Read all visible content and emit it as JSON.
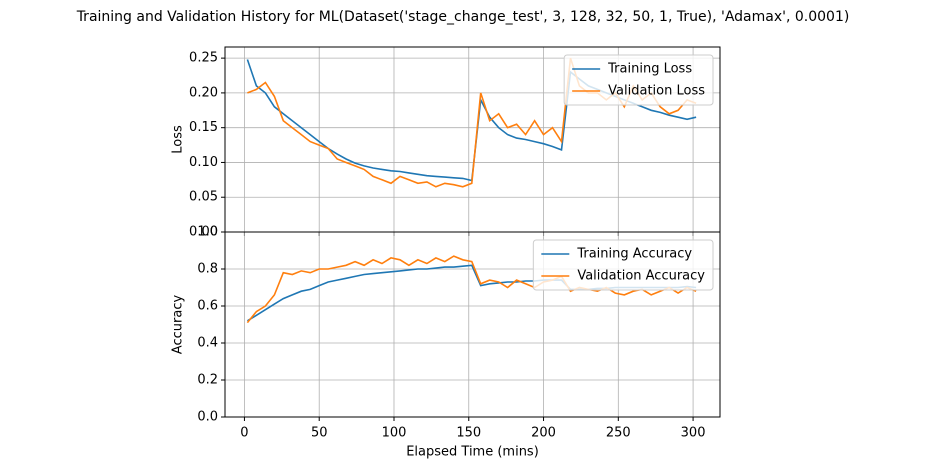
{
  "chart_data": [
    {
      "type": "line",
      "title": "Training and Validation History for ML(Dataset('stage_change_test', 3, 128, 32, 50, 1, True), 'Adamax', 0.0001)",
      "y_label": "Loss",
      "x": [
        2,
        8,
        14,
        20,
        26,
        32,
        38,
        44,
        50,
        56,
        62,
        68,
        74,
        80,
        86,
        92,
        98,
        104,
        110,
        116,
        122,
        128,
        134,
        140,
        146,
        152,
        158,
        164,
        170,
        176,
        182,
        188,
        194,
        200,
        206,
        212,
        218,
        224,
        230,
        236,
        242,
        248,
        254,
        260,
        266,
        272,
        278,
        284,
        290,
        296,
        302
      ],
      "series": [
        {
          "name": "Training Loss",
          "color": "#1f77b4",
          "values": [
            0.248,
            0.21,
            0.2,
            0.18,
            0.17,
            0.16,
            0.15,
            0.14,
            0.13,
            0.12,
            0.112,
            0.105,
            0.099,
            0.095,
            0.092,
            0.09,
            0.088,
            0.087,
            0.085,
            0.083,
            0.081,
            0.08,
            0.079,
            0.078,
            0.077,
            0.074,
            0.19,
            0.165,
            0.15,
            0.14,
            0.135,
            0.133,
            0.13,
            0.127,
            0.123,
            0.118,
            0.23,
            0.22,
            0.21,
            0.205,
            0.2,
            0.195,
            0.19,
            0.185,
            0.18,
            0.175,
            0.172,
            0.168,
            0.165,
            0.162,
            0.165
          ]
        },
        {
          "name": "Validation Loss",
          "color": "#ff7f0e",
          "values": [
            0.2,
            0.205,
            0.215,
            0.195,
            0.16,
            0.15,
            0.14,
            0.13,
            0.125,
            0.12,
            0.105,
            0.1,
            0.095,
            0.09,
            0.08,
            0.075,
            0.07,
            0.08,
            0.075,
            0.07,
            0.072,
            0.065,
            0.07,
            0.068,
            0.065,
            0.07,
            0.2,
            0.16,
            0.17,
            0.15,
            0.155,
            0.14,
            0.16,
            0.14,
            0.15,
            0.13,
            0.25,
            0.21,
            0.2,
            0.2,
            0.19,
            0.2,
            0.18,
            0.21,
            0.19,
            0.2,
            0.18,
            0.17,
            0.175,
            0.19,
            0.185
          ]
        }
      ],
      "xlim": [
        -13,
        318
      ],
      "xticks": [
        0,
        50,
        100,
        150,
        200,
        250,
        300
      ],
      "ylim": [
        0,
        0.266
      ],
      "yticks": [
        {
          "value": 0,
          "label": "0.00"
        },
        0.05,
        {
          "value": 0.1,
          "label": "0.10"
        },
        0.15,
        {
          "value": 0.2,
          "label": "0.20"
        },
        0.25
      ],
      "grid": true,
      "legend": "upper right"
    },
    {
      "type": "line",
      "y_label": "Accuracy",
      "x_label": "Elapsed Time (mins)",
      "x": [
        2,
        8,
        14,
        20,
        26,
        32,
        38,
        44,
        50,
        56,
        62,
        68,
        74,
        80,
        86,
        92,
        98,
        104,
        110,
        116,
        122,
        128,
        134,
        140,
        146,
        152,
        158,
        164,
        170,
        176,
        182,
        188,
        194,
        200,
        206,
        212,
        218,
        224,
        230,
        236,
        242,
        248,
        254,
        260,
        266,
        272,
        278,
        284,
        290,
        296,
        302
      ],
      "series": [
        {
          "name": "Training Accuracy",
          "color": "#1f77b4",
          "values": [
            0.52,
            0.55,
            0.58,
            0.61,
            0.64,
            0.66,
            0.68,
            0.69,
            0.71,
            0.73,
            0.74,
            0.75,
            0.76,
            0.77,
            0.775,
            0.78,
            0.785,
            0.79,
            0.795,
            0.8,
            0.8,
            0.805,
            0.81,
            0.81,
            0.815,
            0.82,
            0.71,
            0.72,
            0.725,
            0.73,
            0.73,
            0.735,
            0.735,
            0.74,
            0.74,
            0.74,
            0.69,
            0.69,
            0.69,
            0.695,
            0.695,
            0.7,
            0.7,
            0.7,
            0.7,
            0.7,
            0.7,
            0.7,
            0.7,
            0.705,
            0.7
          ]
        },
        {
          "name": "Validation Accuracy",
          "color": "#ff7f0e",
          "values": [
            0.51,
            0.57,
            0.6,
            0.66,
            0.78,
            0.77,
            0.79,
            0.78,
            0.8,
            0.8,
            0.81,
            0.82,
            0.84,
            0.82,
            0.85,
            0.83,
            0.86,
            0.85,
            0.82,
            0.85,
            0.83,
            0.86,
            0.84,
            0.87,
            0.85,
            0.84,
            0.72,
            0.74,
            0.73,
            0.7,
            0.74,
            0.72,
            0.7,
            0.73,
            0.74,
            0.76,
            0.68,
            0.7,
            0.69,
            0.68,
            0.7,
            0.67,
            0.66,
            0.68,
            0.69,
            0.66,
            0.68,
            0.7,
            0.67,
            0.7,
            0.68
          ]
        }
      ],
      "xlim": [
        -13,
        318
      ],
      "xticks": [
        0,
        50,
        100,
        150,
        200,
        250,
        300
      ],
      "ylim": [
        0,
        1
      ],
      "yticks": [
        {
          "value": 0,
          "label": "0.0"
        },
        0.2,
        0.4,
        0.6,
        0.8,
        {
          "value": 1,
          "label": "1.0"
        }
      ],
      "grid": true,
      "legend": "upper right"
    }
  ]
}
